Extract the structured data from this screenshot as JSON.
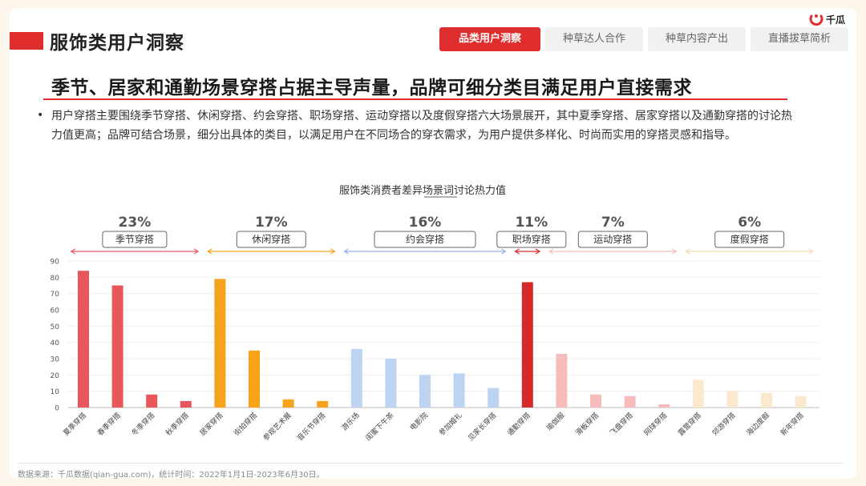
{
  "header": {
    "title": "服饰类用户洞察",
    "logo_text": "千瓜",
    "tabs": [
      {
        "label": "品类用户洞察",
        "active": true
      },
      {
        "label": "种草达人合作",
        "active": false
      },
      {
        "label": "种草内容产出",
        "active": false
      },
      {
        "label": "直播拔草简析",
        "active": false
      }
    ]
  },
  "headline": "季节、居家和通勤场景穿搭占据主导声量，品牌可细分类目满足用户直接需求",
  "bullet": "用户穿搭主要围绕季节穿搭、休闲穿搭、约会穿搭、职场穿搭、运动穿搭以及度假穿搭六大场景展开，其中夏季穿搭、居家穿搭以及通勤穿搭的讨论热力值更高；品牌可结合场景，细分出具体的类目，以满足用户在不同场合的穿衣需求，为用户提供多样化、时尚而实用的穿搭灵感和指导。",
  "footer": "数据来源：千瓜数据(qian-gua.com)，统计时间：2022年1月1日-2023年6月30日。",
  "colors": {
    "accent": "#e02e2e",
    "season": "#e8585a",
    "casual": "#f7a21b",
    "date": "#bcd4f2",
    "work": "#d62a2a",
    "sport": "#f6bcbc",
    "vacation": "#fbe9cf"
  },
  "chart_data": {
    "type": "bar",
    "title": "服饰类消费者差异场景词讨论热力值",
    "ylim": [
      0,
      90
    ],
    "yticks": [
      "0",
      "10",
      "20",
      "30",
      "40",
      "50",
      "60",
      "70",
      "80",
      "90"
    ],
    "grid": true,
    "groups": [
      {
        "name": "季节穿搭",
        "share": "23%",
        "color": "#e8585a",
        "categories": [
          "夏季穿搭",
          "春季穿搭",
          "冬季穿搭",
          "秋季穿搭"
        ],
        "values": [
          84,
          75,
          8,
          4
        ]
      },
      {
        "name": "休闲穿搭",
        "share": "17%",
        "color": "#f7a21b",
        "categories": [
          "居家穿搭",
          "街拍穿搭",
          "参观艺术展",
          "音乐节穿搭"
        ],
        "values": [
          79,
          35,
          5,
          4
        ]
      },
      {
        "name": "约会穿搭",
        "share": "16%",
        "color": "#bcd4f2",
        "categories": [
          "游乐场",
          "闺蜜下午茶",
          "电影院",
          "参加婚礼",
          "见家长穿搭"
        ],
        "values": [
          36,
          30,
          20,
          21,
          12
        ]
      },
      {
        "name": "职场穿搭",
        "share": "11%",
        "color": "#d62a2a",
        "categories": [
          "通勤穿搭"
        ],
        "values": [
          77
        ]
      },
      {
        "name": "运动穿搭",
        "share": "7%",
        "color": "#f6bcbc",
        "categories": [
          "瑜伽服",
          "滑板穿搭",
          "飞盘穿搭",
          "网球穿搭"
        ],
        "values": [
          33,
          8,
          7,
          2
        ]
      },
      {
        "name": "度假穿搭",
        "share": "6%",
        "color": "#fbe9cf",
        "categories": [
          "露营穿搭",
          "郊游穿搭",
          "海边度假",
          "新年穿搭"
        ],
        "values": [
          17,
          10,
          9,
          7
        ]
      }
    ]
  }
}
